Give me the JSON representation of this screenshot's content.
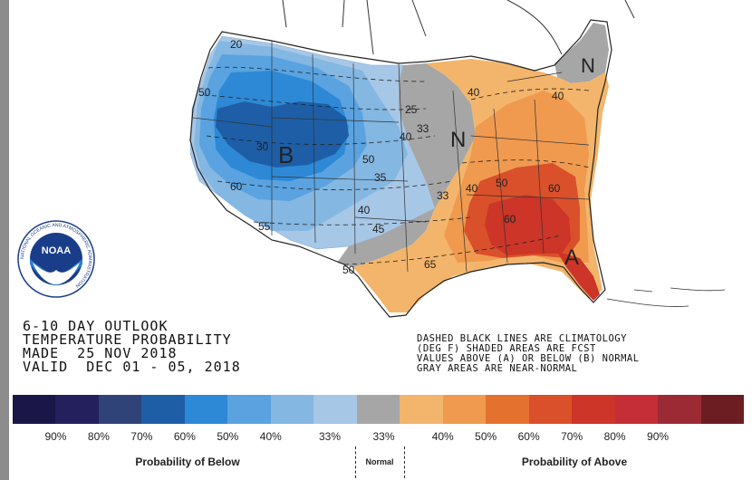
{
  "outlook": {
    "line1": "6-10 DAY OUTLOOK",
    "line2": "TEMPERATURE PROBABILITY",
    "line3": "MADE  25 NOV 2018",
    "line4": "VALID  DEC 01 - 05, 2018"
  },
  "note": {
    "line1": "DASHED BLACK LINES ARE CLIMATOLOGY",
    "line2": "(DEG F) SHADED AREAS ARE FCST",
    "line3": "VALUES ABOVE (A) OR BELOW (B) NORMAL",
    "line4": "GRAY AREAS ARE NEAR-NORMAL"
  },
  "logo": {
    "name": "NOAA",
    "ring_text": "NATIONAL OCEANIC AND ATMOSPHERIC ADMINISTRATION"
  },
  "map_labels": {
    "below_center": "B",
    "normal_mid": "N",
    "normal_ne": "N",
    "above_se": "A",
    "climatology": [
      "20",
      "50",
      "30",
      "60",
      "55",
      "25",
      "33",
      "40",
      "50",
      "35",
      "40",
      "45",
      "50",
      "33",
      "40",
      "50",
      "60",
      "60",
      "65",
      "40",
      "40"
    ]
  },
  "legend": {
    "colors": [
      "#1b1648",
      "#24205e",
      "#2f4378",
      "#1e5ea6",
      "#2d89d6",
      "#5aa3e0",
      "#84b7e2",
      "#a7c7e7",
      "#a6a6a6",
      "#f3b56b",
      "#ef9a4f",
      "#e5712e",
      "#d9502b",
      "#cc3527",
      "#c62e37",
      "#9b2a34",
      "#6b1d22"
    ],
    "ticks": [
      "90%",
      "80%",
      "70%",
      "60%",
      "50%",
      "40%",
      "33%",
      "33%",
      "40%",
      "50%",
      "60%",
      "70%",
      "80%",
      "90%"
    ],
    "below_label": "Probability of Below",
    "normal_label": "Normal",
    "above_label": "Probability of Above"
  }
}
